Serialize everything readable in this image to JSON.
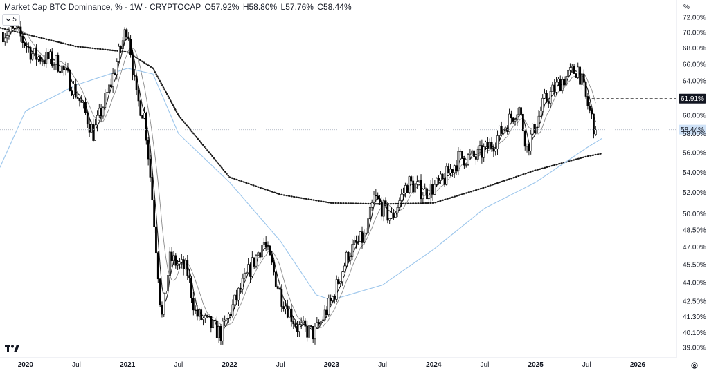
{
  "header": {
    "title": "Market Cap BTC Dominance, % · 1W · CRYPTOCAP",
    "open_label": "O",
    "open": "57.92%",
    "high_label": "H",
    "high": "58.80%",
    "low_label": "L",
    "low": "57.76%",
    "close_label": "C",
    "close": "58.44%"
  },
  "indicator_toggle": {
    "label": "5"
  },
  "axis_unit": "%",
  "colors": {
    "candle_up": "#ffffff",
    "candle_outline": "#000000",
    "candle_down": "#000000",
    "ma_blue": "#9cc6ec",
    "ma_gray": "#8a8a8a",
    "ma_dark": "#222222",
    "ma_dotted": "#1a1a1a",
    "current_price_bg": "#cfe2f7",
    "marker_bg": "#131722",
    "grid": "#ffffff"
  },
  "icons": {
    "logo": "tradingview-logo",
    "settings": "gear-icon",
    "toggle": "chevron-down-icon"
  },
  "chart_data": {
    "type": "candlestick",
    "timeframe": "1W",
    "y_unit": "%",
    "y_scale": "log",
    "ylim": [
      38.5,
      72.5
    ],
    "y_ticks": [
      "72.00%",
      "70.00%",
      "68.00%",
      "66.00%",
      "64.00%",
      "60.00%",
      "58.00%",
      "56.00%",
      "54.00%",
      "52.00%",
      "50.00%",
      "48.50%",
      "47.00%",
      "45.50%",
      "44.00%",
      "42.50%",
      "41.30%",
      "40.10%",
      "39.00%"
    ],
    "x_ticks": [
      "2020",
      "Jul",
      "2021",
      "Jul",
      "2022",
      "Jul",
      "2023",
      "Jul",
      "2024",
      "Jul",
      "2025",
      "Jul",
      "2026"
    ],
    "markers": [
      {
        "label": "61.91%",
        "value": 61.91,
        "style": "dashed"
      },
      {
        "label": "58.44%",
        "value": 58.44,
        "style": "current"
      }
    ],
    "keypoints": [
      {
        "x": "2019-12",
        "y": 70.0
      },
      {
        "x": "2020-02",
        "y": 67.0
      },
      {
        "x": "2020-04",
        "y": 66.5
      },
      {
        "x": "2020-05",
        "y": 66.0
      },
      {
        "x": "2020-07",
        "y": 62.5
      },
      {
        "x": "2020-09",
        "y": 58.0
      },
      {
        "x": "2020-11",
        "y": 63.5
      },
      {
        "x": "2021-01",
        "y": 71.0
      },
      {
        "x": "2021-02",
        "y": 62.0
      },
      {
        "x": "2021-03",
        "y": 60.0
      },
      {
        "x": "2021-05",
        "y": 41.0
      },
      {
        "x": "2021-06",
        "y": 46.0
      },
      {
        "x": "2021-08",
        "y": 45.0
      },
      {
        "x": "2021-09",
        "y": 41.5
      },
      {
        "x": "2021-12",
        "y": 40.0
      },
      {
        "x": "2022-02",
        "y": 43.0
      },
      {
        "x": "2022-05",
        "y": 47.5
      },
      {
        "x": "2022-07",
        "y": 43.0
      },
      {
        "x": "2022-09",
        "y": 40.5
      },
      {
        "x": "2022-11",
        "y": 40.0
      },
      {
        "x": "2023-01",
        "y": 42.5
      },
      {
        "x": "2023-03",
        "y": 46.5
      },
      {
        "x": "2023-05",
        "y": 48.0
      },
      {
        "x": "2023-06",
        "y": 51.5
      },
      {
        "x": "2023-08",
        "y": 49.5
      },
      {
        "x": "2023-10",
        "y": 53.0
      },
      {
        "x": "2023-12",
        "y": 52.0
      },
      {
        "x": "2024-02",
        "y": 53.0
      },
      {
        "x": "2024-04",
        "y": 55.5
      },
      {
        "x": "2024-06",
        "y": 55.5
      },
      {
        "x": "2024-08",
        "y": 57.0
      },
      {
        "x": "2024-11",
        "y": 61.0
      },
      {
        "x": "2024-12",
        "y": 56.5
      },
      {
        "x": "2025-02",
        "y": 61.5
      },
      {
        "x": "2025-04",
        "y": 64.0
      },
      {
        "x": "2025-06",
        "y": 65.5
      },
      {
        "x": "2025-07",
        "y": 61.5
      },
      {
        "x": "2025-08",
        "y": 58.44
      }
    ],
    "moving_averages": [
      {
        "style": "dotted",
        "color": "#1a1a1a",
        "points": [
          [
            2019.75,
            70.6
          ],
          [
            2020.5,
            68.2
          ],
          [
            2021.0,
            67.5
          ],
          [
            2021.25,
            65.5
          ],
          [
            2021.5,
            60
          ],
          [
            2022.0,
            53.5
          ],
          [
            2022.5,
            51.8
          ],
          [
            2023.0,
            51.0
          ],
          [
            2023.5,
            50.9
          ],
          [
            2024.0,
            51.0
          ],
          [
            2024.5,
            52.5
          ],
          [
            2025.0,
            54.2
          ],
          [
            2025.5,
            55.6
          ],
          [
            2025.65,
            55.9
          ]
        ]
      },
      {
        "style": "solid",
        "color": "#9cc6ec",
        "points": [
          [
            2019.75,
            54.5
          ],
          [
            2020.0,
            60.5
          ],
          [
            2020.5,
            63.5
          ],
          [
            2021.0,
            65.5
          ],
          [
            2021.25,
            64.8
          ],
          [
            2021.5,
            58
          ],
          [
            2022.0,
            53
          ],
          [
            2022.5,
            47.5
          ],
          [
            2022.85,
            43.0
          ],
          [
            2023.0,
            42.6
          ],
          [
            2023.5,
            43.8
          ],
          [
            2024.0,
            46.8
          ],
          [
            2024.5,
            50.5
          ],
          [
            2025.0,
            53.0
          ],
          [
            2025.5,
            56.5
          ],
          [
            2025.65,
            57.5
          ]
        ]
      }
    ]
  }
}
